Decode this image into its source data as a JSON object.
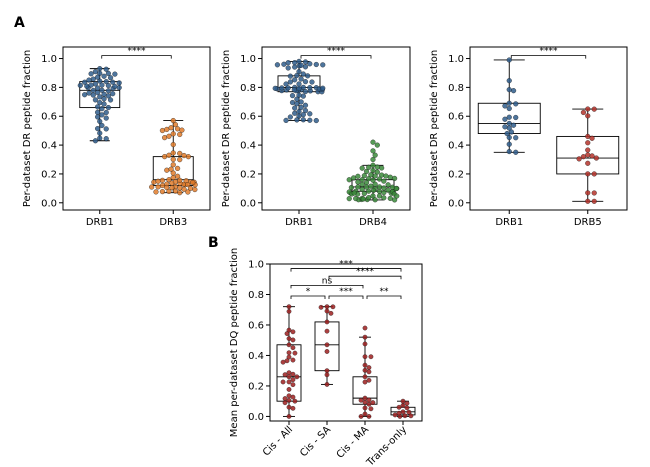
{
  "panels": {
    "A": "A",
    "B": "B"
  },
  "chart_data": [
    {
      "id": "drb3",
      "type": "box-swarm",
      "ylabel": "Per-dataset DR peptide fraction",
      "ylim": [
        -0.05,
        1.08
      ],
      "yticks": [
        0.0,
        0.2,
        0.4,
        0.6,
        0.8,
        1.0
      ],
      "categories": [
        "DRB1",
        "DRB3"
      ],
      "series": [
        {
          "color": "#2f5d8c",
          "stats": {
            "min": 0.43,
            "q1": 0.66,
            "median": 0.78,
            "q3": 0.84,
            "max": 0.93
          },
          "n": 60,
          "seed": 11
        },
        {
          "color": "#e07b2a",
          "stats": {
            "min": 0.07,
            "q1": 0.12,
            "median": 0.16,
            "q3": 0.32,
            "max": 0.57
          },
          "n": 60,
          "seed": 12
        }
      ],
      "comparisons": [
        {
          "from": 0,
          "to": 1,
          "label": "****",
          "y": 1.02
        }
      ]
    },
    {
      "id": "drb4",
      "type": "box-swarm",
      "ylabel": "Per-dataset DR peptide fraction",
      "ylim": [
        -0.05,
        1.08
      ],
      "yticks": [
        0.0,
        0.2,
        0.4,
        0.6,
        0.8,
        1.0
      ],
      "categories": [
        "DRB1",
        "DRB4"
      ],
      "series": [
        {
          "color": "#2f5d8c",
          "stats": {
            "min": 0.57,
            "q1": 0.77,
            "median": 0.8,
            "q3": 0.88,
            "max": 0.98
          },
          "n": 70,
          "seed": 21
        },
        {
          "color": "#3a8a3a",
          "stats": {
            "min": 0.02,
            "q1": 0.08,
            "median": 0.11,
            "q3": 0.16,
            "max": 0.26
          },
          "n": 70,
          "outliers": [
            0.3,
            0.33,
            0.36,
            0.4,
            0.42
          ],
          "seed": 22
        }
      ],
      "comparisons": [
        {
          "from": 0,
          "to": 1,
          "label": "****",
          "y": 1.02
        }
      ]
    },
    {
      "id": "drb5",
      "type": "box-swarm",
      "ylabel": "Per-dataset DR peptide fraction",
      "ylim": [
        -0.05,
        1.08
      ],
      "yticks": [
        0.0,
        0.2,
        0.4,
        0.6,
        0.8,
        1.0
      ],
      "categories": [
        "DRB1",
        "DRB5"
      ],
      "series": [
        {
          "color": "#2f5d8c",
          "stats": {
            "min": 0.35,
            "q1": 0.48,
            "median": 0.55,
            "q3": 0.69,
            "max": 0.99
          },
          "n": 22,
          "seed": 31
        },
        {
          "color": "#b5332a",
          "stats": {
            "min": 0.01,
            "q1": 0.2,
            "median": 0.31,
            "q3": 0.46,
            "max": 0.65
          },
          "n": 20,
          "seed": 32
        }
      ],
      "comparisons": [
        {
          "from": 0,
          "to": 1,
          "label": "****",
          "y": 1.02
        }
      ]
    },
    {
      "id": "dq",
      "type": "box-swarm",
      "ylabel": "Mean per-dataset DQ peptide fraction",
      "ylim": [
        -0.03,
        1.0
      ],
      "yticks": [
        0.0,
        0.2,
        0.4,
        0.6,
        0.8,
        1.0
      ],
      "categories": [
        "Cis - All",
        "Cis - SA",
        "Cis - MA",
        "Trans-only"
      ],
      "series": [
        {
          "color": "#9e1f1f",
          "stats": {
            "min": 0.0,
            "q1": 0.1,
            "median": 0.26,
            "q3": 0.47,
            "max": 0.72
          },
          "n": 34,
          "seed": 41
        },
        {
          "color": "#9e1f1f",
          "stats": {
            "min": 0.21,
            "q1": 0.3,
            "median": 0.47,
            "q3": 0.62,
            "max": 0.72
          },
          "n": 12,
          "seed": 42
        },
        {
          "color": "#9e1f1f",
          "stats": {
            "min": 0.0,
            "q1": 0.08,
            "median": 0.12,
            "q3": 0.26,
            "max": 0.52
          },
          "n": 22,
          "outliers": [
            0.58
          ],
          "seed": 43
        },
        {
          "color": "#9e1f1f",
          "stats": {
            "min": 0.0,
            "q1": 0.01,
            "median": 0.03,
            "q3": 0.06,
            "max": 0.1
          },
          "n": 12,
          "seed": 44
        }
      ],
      "comparisons": [
        {
          "from": 0,
          "to": 1,
          "label": "*",
          "y": 0.79
        },
        {
          "from": 1,
          "to": 2,
          "label": "***",
          "y": 0.79
        },
        {
          "from": 2,
          "to": 3,
          "label": "**",
          "y": 0.79
        },
        {
          "from": 0,
          "to": 2,
          "label": "ns",
          "y": 0.86
        },
        {
          "from": 1,
          "to": 3,
          "label": "****",
          "y": 0.92
        },
        {
          "from": 0,
          "to": 3,
          "label": "***",
          "y": 0.97
        }
      ]
    }
  ]
}
